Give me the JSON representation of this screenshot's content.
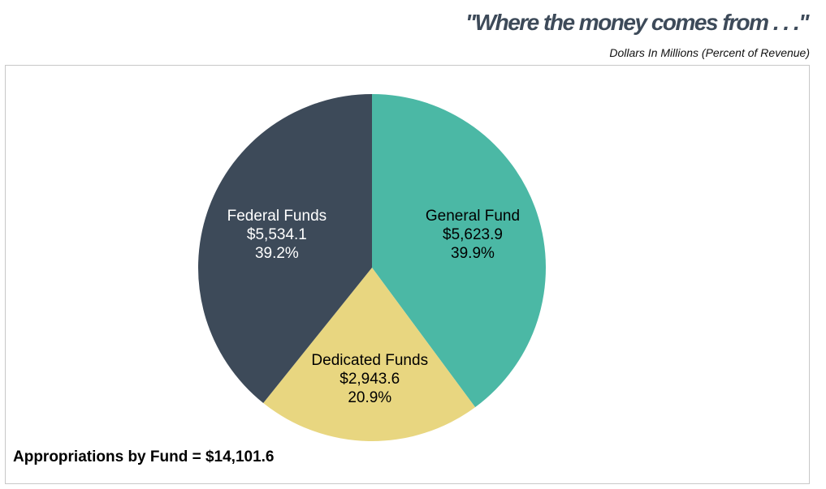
{
  "header": {
    "title": "\"Where the money comes from . . .\"",
    "subtitle": "Dollars In Millions (Percent of Revenue)"
  },
  "footer": {
    "total_label": "Appropriations by Fund = $14,101.6"
  },
  "colors": {
    "title": "#3d4a59",
    "general_fund": "#4bb8a5",
    "dedicated_funds": "#e8d680",
    "federal_funds": "#3d4a59",
    "label_dark": "#000000",
    "label_light": "#ffffff"
  },
  "chart_data": {
    "type": "pie",
    "title": "\"Where the money comes from . . .\"",
    "subtitle": "Dollars In Millions (Percent of Revenue)",
    "unit": "Dollars In Millions",
    "total": 14101.6,
    "slices": [
      {
        "name": "General Fund",
        "value": 5623.9,
        "value_label": "$5,623.9",
        "percent": 39.9,
        "percent_label": "39.9%",
        "color": "#4bb8a5",
        "text_color": "#000000"
      },
      {
        "name": "Dedicated Funds",
        "value": 2943.6,
        "value_label": "$2,943.6",
        "percent": 20.9,
        "percent_label": "20.9%",
        "color": "#e8d680",
        "text_color": "#000000"
      },
      {
        "name": "Federal Funds",
        "value": 5534.1,
        "value_label": "$5,534.1",
        "percent": 39.2,
        "percent_label": "39.2%",
        "color": "#3d4a59",
        "text_color": "#ffffff"
      }
    ],
    "start_angle": "12 o'clock",
    "direction": "clockwise",
    "legend": "none (labels inside slices)"
  }
}
